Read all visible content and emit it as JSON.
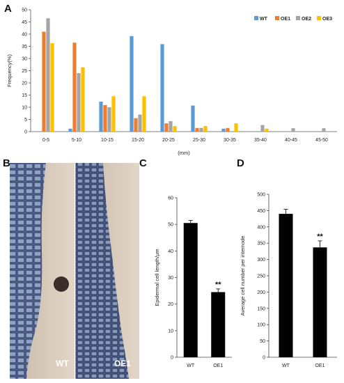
{
  "panels": {
    "a": "A",
    "b": "B",
    "c": "C",
    "d": "D"
  },
  "colors": {
    "WT": "#5b9bd5",
    "OE1": "#ed7d31",
    "OE2": "#a5a5a5",
    "OE3": "#ffc000",
    "bar_black": "#000000"
  },
  "micrographs": {
    "left_label": "WT",
    "right_label": "OE1"
  },
  "chart_data": [
    {
      "type": "bar",
      "panel": "A",
      "ylabel": "Frequency(%)",
      "xlabel": "(mm)",
      "ylim": [
        0,
        50
      ],
      "yticks": [
        0,
        5,
        10,
        15,
        20,
        25,
        30,
        35,
        40,
        45,
        50
      ],
      "legend_position": "top-right",
      "categories": [
        "0-5",
        "5-10",
        "10-15",
        "15-20",
        "20-25",
        "25-30",
        "30-35",
        "35-40",
        "40-45",
        "45-50"
      ],
      "series": [
        {
          "name": "WT",
          "values": [
            0,
            1.2,
            12.3,
            39.2,
            35.9,
            10.7,
            1.2,
            0,
            0,
            0
          ]
        },
        {
          "name": "OE1",
          "values": [
            41.0,
            36.5,
            10.9,
            5.5,
            3.4,
            1.5,
            1.5,
            0,
            0,
            0
          ]
        },
        {
          "name": "OE2",
          "values": [
            46.5,
            24.0,
            10.0,
            7.0,
            4.3,
            1.5,
            0,
            2.7,
            1.4,
            1.4
          ]
        },
        {
          "name": "OE3",
          "values": [
            36.3,
            26.4,
            14.5,
            14.5,
            2.3,
            2.3,
            3.4,
            1.2,
            0,
            0
          ]
        }
      ]
    },
    {
      "type": "bar",
      "panel": "C",
      "ylabel": "Epidermal cell length/μm",
      "ylim": [
        0,
        60
      ],
      "yticks": [
        0,
        10,
        20,
        30,
        40,
        50,
        60
      ],
      "categories": [
        "WT",
        "OE1"
      ],
      "values": [
        50.5,
        24.5
      ],
      "errors": [
        1.0,
        1.2
      ],
      "annotations": [
        "",
        "**"
      ]
    },
    {
      "type": "bar",
      "panel": "D",
      "ylabel": "Average cell number per internode",
      "ylim": [
        0,
        500
      ],
      "yticks": [
        0,
        50,
        100,
        150,
        200,
        250,
        300,
        350,
        400,
        450,
        500
      ],
      "categories": [
        "WT",
        "OE1"
      ],
      "values": [
        440,
        337
      ],
      "errors": [
        14,
        20
      ],
      "annotations": [
        "",
        "**"
      ]
    }
  ]
}
